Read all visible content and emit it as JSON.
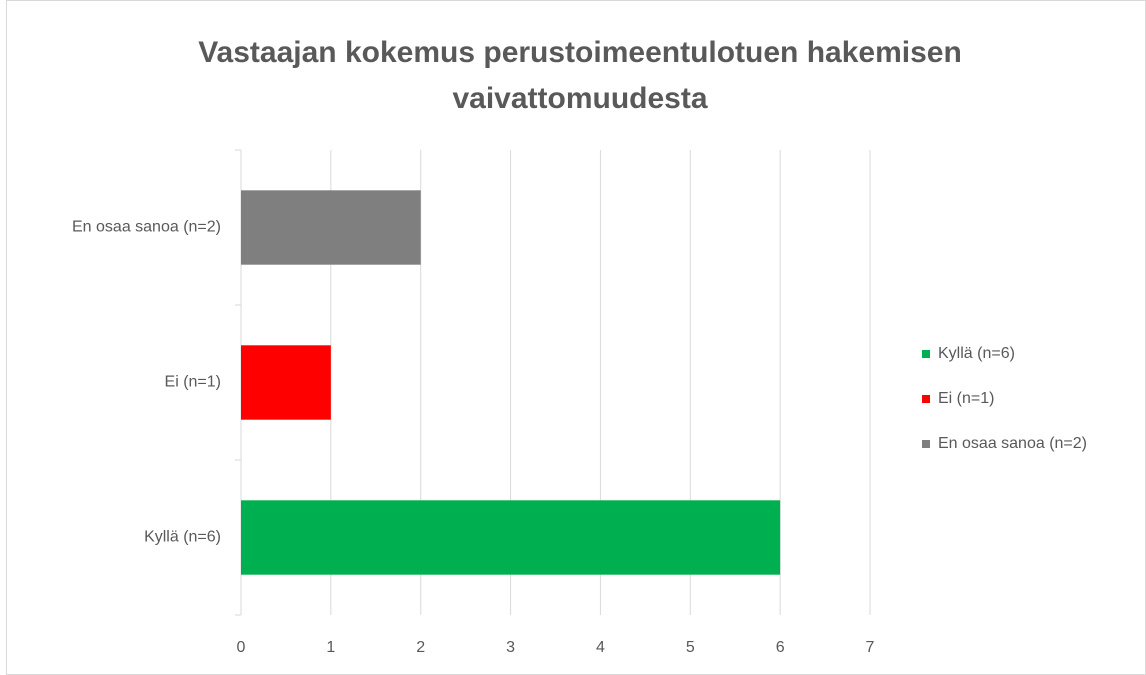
{
  "chart_data": {
    "type": "bar",
    "orientation": "horizontal",
    "title": "Vastaajan kokemus perustoimeentulotuen hakemisen vaivattomuudesta",
    "categories": [
      "Kyllä (n=6)",
      "Ei (n=1)",
      "En osaa sanoa (n=2)"
    ],
    "values": [
      6,
      1,
      2
    ],
    "colors": [
      "#00b050",
      "#ff0000",
      "#7f7f7f"
    ],
    "xlim": [
      0,
      7
    ],
    "xticks": [
      0,
      1,
      2,
      3,
      4,
      5,
      6,
      7
    ],
    "grid": true,
    "legend": "right"
  }
}
